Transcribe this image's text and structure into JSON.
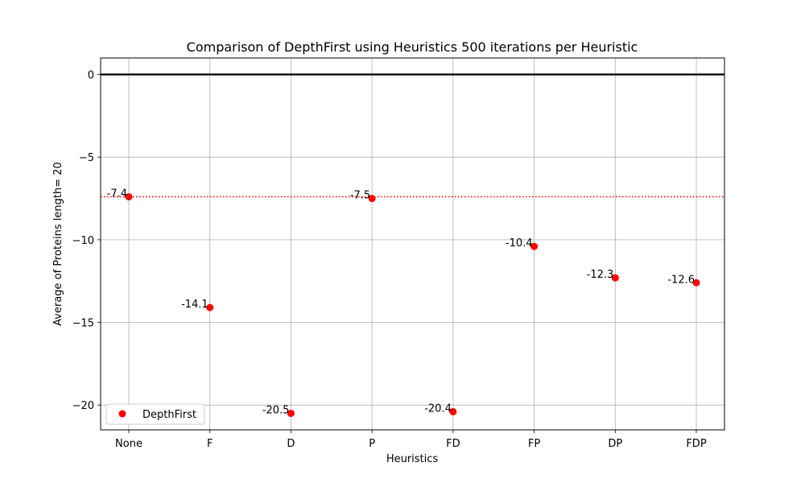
{
  "chart_data": {
    "type": "scatter",
    "title": "Comparison of DepthFirst using Heuristics 500 iterations per Heuristic",
    "xlabel": "Heuristics",
    "ylabel": "Average of Proteins length= 20",
    "categories": [
      "None",
      "F",
      "D",
      "P",
      "FD",
      "FP",
      "DP",
      "FDP"
    ],
    "series": [
      {
        "name": "DepthFirst",
        "color": "#ff0000",
        "values": [
          -7.4,
          -14.1,
          -20.5,
          -7.5,
          -20.4,
          -10.4,
          -12.3,
          -12.6
        ],
        "labels": [
          "-7.4",
          "-14.1",
          "-20.5",
          "-7.5",
          "-20.4",
          "-10.4",
          "-12.3",
          "-12.6"
        ]
      }
    ],
    "ylim": [
      -21.5,
      1.0
    ],
    "yticks": [
      0,
      -5,
      -10,
      -15,
      -20
    ],
    "ytick_labels": [
      "0",
      "−5",
      "−10",
      "−15",
      "−20"
    ],
    "reference_lines": [
      {
        "y": 0,
        "style": "solid",
        "color": "#000000"
      },
      {
        "y": -7.4,
        "style": "dotted",
        "color": "#ff0000"
      }
    ],
    "grid": true,
    "legend": "lower-left"
  }
}
